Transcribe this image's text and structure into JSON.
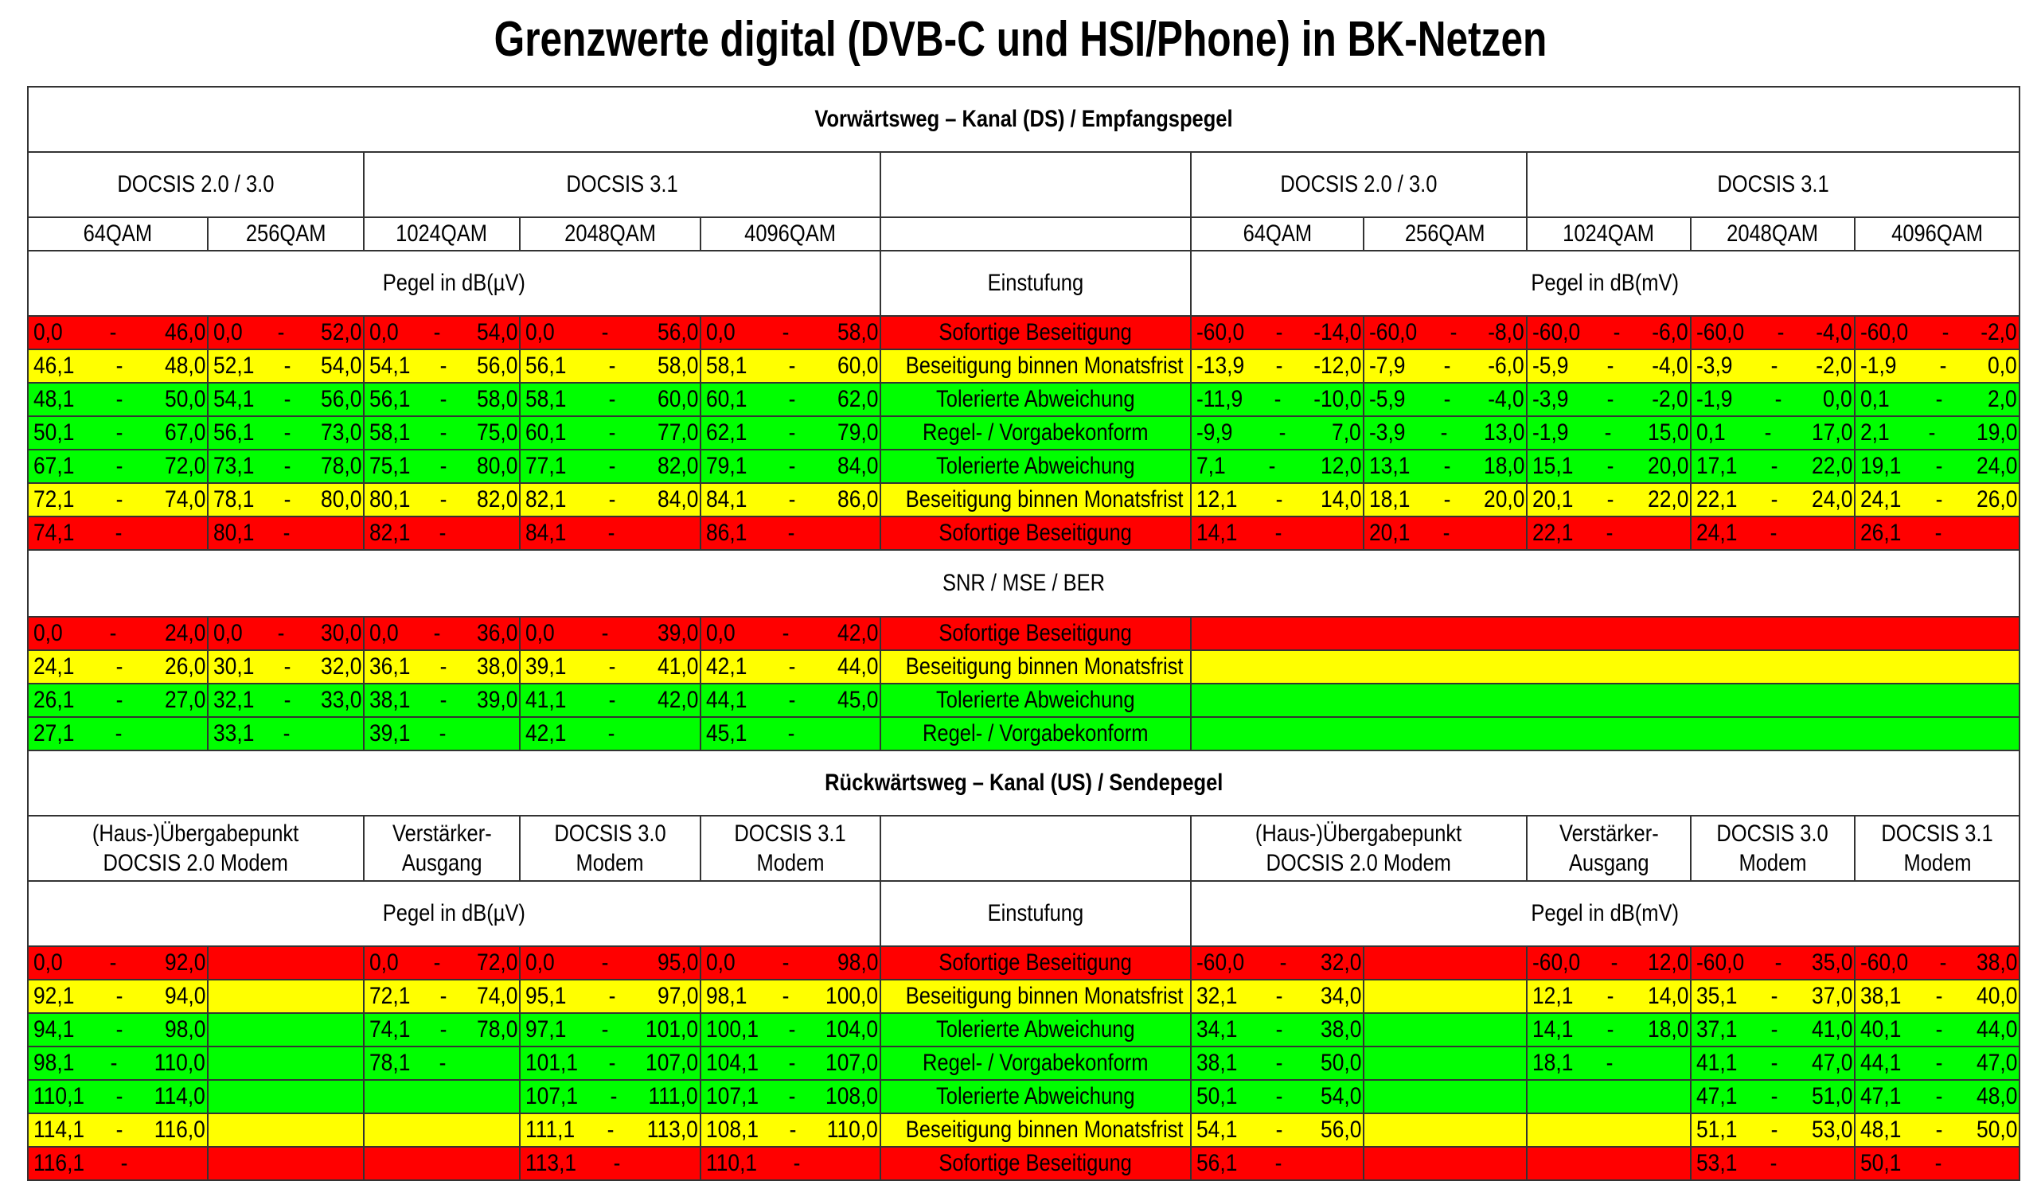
{
  "title": "Grenzwerte digital (DVB-C und HSI/Phone) in BK-Netzen",
  "colors": {
    "red": "#ff0000",
    "yellow": "#ffff00",
    "green": "#00ff00"
  },
  "downstream": {
    "heading": "Vorwärtsweg – Kanal (DS) / Empfangspegel",
    "groups": [
      "DOCSIS 2.0 / 3.0",
      "DOCSIS 3.1",
      "",
      "DOCSIS 2.0 / 3.0",
      "DOCSIS 3.1"
    ],
    "modulations": [
      "64QAM",
      "256QAM",
      "1024QAM",
      "2048QAM",
      "4096QAM",
      "",
      "64QAM",
      "256QAM",
      "1024QAM",
      "2048QAM",
      "4096QAM"
    ],
    "unit_left": "Pegel in dB(µV)",
    "classification": "Einstufung",
    "unit_right": "Pegel in dB(mV)",
    "rows": [
      {
        "color": "red",
        "label": "Sofortige Beseitigung",
        "left": [
          [
            "0,0",
            "46,0"
          ],
          [
            "0,0",
            "52,0"
          ],
          [
            "0,0",
            "54,0"
          ],
          [
            "0,0",
            "56,0"
          ],
          [
            "0,0",
            "58,0"
          ]
        ],
        "right": [
          [
            "-60,0",
            "-14,0"
          ],
          [
            "-60,0",
            "-8,0"
          ],
          [
            "-60,0",
            "-6,0"
          ],
          [
            "-60,0",
            "-4,0"
          ],
          [
            "-60,0",
            "-2,0"
          ]
        ]
      },
      {
        "color": "yellow",
        "label": "Beseitigung binnen Monatsfrist",
        "left": [
          [
            "46,1",
            "48,0"
          ],
          [
            "52,1",
            "54,0"
          ],
          [
            "54,1",
            "56,0"
          ],
          [
            "56,1",
            "58,0"
          ],
          [
            "58,1",
            "60,0"
          ]
        ],
        "right": [
          [
            "-13,9",
            "-12,0"
          ],
          [
            "-7,9",
            "-6,0"
          ],
          [
            "-5,9",
            "-4,0"
          ],
          [
            "-3,9",
            "-2,0"
          ],
          [
            "-1,9",
            "0,0"
          ]
        ]
      },
      {
        "color": "green",
        "label": "Tolerierte Abweichung",
        "left": [
          [
            "48,1",
            "50,0"
          ],
          [
            "54,1",
            "56,0"
          ],
          [
            "56,1",
            "58,0"
          ],
          [
            "58,1",
            "60,0"
          ],
          [
            "60,1",
            "62,0"
          ]
        ],
        "right": [
          [
            "-11,9",
            "-10,0"
          ],
          [
            "-5,9",
            "-4,0"
          ],
          [
            "-3,9",
            "-2,0"
          ],
          [
            "-1,9",
            "0,0"
          ],
          [
            "0,1",
            "2,0"
          ]
        ]
      },
      {
        "color": "green",
        "label": "Regel- / Vorgabekonform",
        "left": [
          [
            "50,1",
            "67,0"
          ],
          [
            "56,1",
            "73,0"
          ],
          [
            "58,1",
            "75,0"
          ],
          [
            "60,1",
            "77,0"
          ],
          [
            "62,1",
            "79,0"
          ]
        ],
        "right": [
          [
            "-9,9",
            "7,0"
          ],
          [
            "-3,9",
            "13,0"
          ],
          [
            "-1,9",
            "15,0"
          ],
          [
            "0,1",
            "17,0"
          ],
          [
            "2,1",
            "19,0"
          ]
        ]
      },
      {
        "color": "green",
        "label": "Tolerierte Abweichung",
        "left": [
          [
            "67,1",
            "72,0"
          ],
          [
            "73,1",
            "78,0"
          ],
          [
            "75,1",
            "80,0"
          ],
          [
            "77,1",
            "82,0"
          ],
          [
            "79,1",
            "84,0"
          ]
        ],
        "right": [
          [
            "7,1",
            "12,0"
          ],
          [
            "13,1",
            "18,0"
          ],
          [
            "15,1",
            "20,0"
          ],
          [
            "17,1",
            "22,0"
          ],
          [
            "19,1",
            "24,0"
          ]
        ]
      },
      {
        "color": "yellow",
        "label": "Beseitigung binnen Monatsfrist",
        "left": [
          [
            "72,1",
            "74,0"
          ],
          [
            "78,1",
            "80,0"
          ],
          [
            "80,1",
            "82,0"
          ],
          [
            "82,1",
            "84,0"
          ],
          [
            "84,1",
            "86,0"
          ]
        ],
        "right": [
          [
            "12,1",
            "14,0"
          ],
          [
            "18,1",
            "20,0"
          ],
          [
            "20,1",
            "22,0"
          ],
          [
            "22,1",
            "24,0"
          ],
          [
            "24,1",
            "26,0"
          ]
        ]
      },
      {
        "color": "red",
        "label": "Sofortige Beseitigung",
        "left": [
          [
            "74,1",
            ""
          ],
          [
            "80,1",
            ""
          ],
          [
            "82,1",
            ""
          ],
          [
            "84,1",
            ""
          ],
          [
            "86,1",
            ""
          ]
        ],
        "right": [
          [
            "14,1",
            ""
          ],
          [
            "20,1",
            ""
          ],
          [
            "22,1",
            ""
          ],
          [
            "24,1",
            ""
          ],
          [
            "26,1",
            ""
          ]
        ]
      }
    ]
  },
  "snr": {
    "heading": "SNR / MSE / BER",
    "rows": [
      {
        "color": "red",
        "label": "Sofortige Beseitigung",
        "left": [
          [
            "0,0",
            "24,0"
          ],
          [
            "0,0",
            "30,0"
          ],
          [
            "0,0",
            "36,0"
          ],
          [
            "0,0",
            "39,0"
          ],
          [
            "0,0",
            "42,0"
          ]
        ]
      },
      {
        "color": "yellow",
        "label": "Beseitigung binnen Monatsfrist",
        "left": [
          [
            "24,1",
            "26,0"
          ],
          [
            "30,1",
            "32,0"
          ],
          [
            "36,1",
            "38,0"
          ],
          [
            "39,1",
            "41,0"
          ],
          [
            "42,1",
            "44,0"
          ]
        ]
      },
      {
        "color": "green",
        "label": "Tolerierte Abweichung",
        "left": [
          [
            "26,1",
            "27,0"
          ],
          [
            "32,1",
            "33,0"
          ],
          [
            "38,1",
            "39,0"
          ],
          [
            "41,1",
            "42,0"
          ],
          [
            "44,1",
            "45,0"
          ]
        ]
      },
      {
        "color": "green",
        "label": "Regel- / Vorgabekonform",
        "left": [
          [
            "27,1",
            ""
          ],
          [
            "33,1",
            ""
          ],
          [
            "39,1",
            ""
          ],
          [
            "42,1",
            ""
          ],
          [
            "45,1",
            ""
          ]
        ]
      }
    ]
  },
  "upstream": {
    "heading": "Rückwärtsweg – Kanal (US) / Sendepegel",
    "columns": [
      [
        "(Haus-)Übergabepunkt",
        "DOCSIS 2.0 Modem"
      ],
      [
        "Verstärker-",
        "Ausgang"
      ],
      [
        "DOCSIS 3.0",
        "Modem"
      ],
      [
        "DOCSIS 3.1",
        "Modem"
      ],
      [
        "",
        ""
      ],
      [
        "(Haus-)Übergabepunkt",
        "DOCSIS 2.0 Modem"
      ],
      [
        "Verstärker-",
        "Ausgang"
      ],
      [
        "DOCSIS 3.0",
        "Modem"
      ],
      [
        "DOCSIS 3.1",
        "Modem"
      ]
    ],
    "unit_left": "Pegel in dB(µV)",
    "classification": "Einstufung",
    "unit_right": "Pegel in dB(mV)",
    "rows": [
      {
        "color": "red",
        "label": "Sofortige Beseitigung",
        "left": [
          [
            "0,0",
            "92,0"
          ],
          [
            "0,0",
            "72,0"
          ],
          [
            "0,0",
            "95,0"
          ],
          [
            "0,0",
            "98,0"
          ]
        ],
        "right": [
          [
            "-60,0",
            "32,0"
          ],
          [
            "-60,0",
            "12,0"
          ],
          [
            "-60,0",
            "35,0"
          ],
          [
            "-60,0",
            "38,0"
          ]
        ]
      },
      {
        "color": "yellow",
        "label": "Beseitigung binnen Monatsfrist",
        "left": [
          [
            "92,1",
            "94,0"
          ],
          [
            "72,1",
            "74,0"
          ],
          [
            "95,1",
            "97,0"
          ],
          [
            "98,1",
            "100,0"
          ]
        ],
        "right": [
          [
            "32,1",
            "34,0"
          ],
          [
            "12,1",
            "14,0"
          ],
          [
            "35,1",
            "37,0"
          ],
          [
            "38,1",
            "40,0"
          ]
        ]
      },
      {
        "color": "green",
        "label": "Tolerierte Abweichung",
        "left": [
          [
            "94,1",
            "98,0"
          ],
          [
            "74,1",
            "78,0"
          ],
          [
            "97,1",
            "101,0"
          ],
          [
            "100,1",
            "104,0"
          ]
        ],
        "right": [
          [
            "34,1",
            "38,0"
          ],
          [
            "14,1",
            "18,0"
          ],
          [
            "37,1",
            "41,0"
          ],
          [
            "40,1",
            "44,0"
          ]
        ]
      },
      {
        "color": "green",
        "label": "Regel- / Vorgabekonform",
        "left": [
          [
            "98,1",
            "110,0"
          ],
          [
            "78,1",
            ""
          ],
          [
            "101,1",
            "107,0"
          ],
          [
            "104,1",
            "107,0"
          ]
        ],
        "right": [
          [
            "38,1",
            "50,0"
          ],
          [
            "18,1",
            ""
          ],
          [
            "41,1",
            "47,0"
          ],
          [
            "44,1",
            "47,0"
          ]
        ]
      },
      {
        "color": "green",
        "label": "Tolerierte Abweichung",
        "left": [
          [
            "110,1",
            "114,0"
          ],
          [
            "",
            ""
          ],
          [
            "107,1",
            "111,0"
          ],
          [
            "107,1",
            "108,0"
          ]
        ],
        "right": [
          [
            "50,1",
            "54,0"
          ],
          [
            "",
            ""
          ],
          [
            "47,1",
            "51,0"
          ],
          [
            "47,1",
            "48,0"
          ]
        ]
      },
      {
        "color": "yellow",
        "label": "Beseitigung binnen Monatsfrist",
        "left": [
          [
            "114,1",
            "116,0"
          ],
          [
            "",
            ""
          ],
          [
            "111,1",
            "113,0"
          ],
          [
            "108,1",
            "110,0"
          ]
        ],
        "right": [
          [
            "54,1",
            "56,0"
          ],
          [
            "",
            ""
          ],
          [
            "51,1",
            "53,0"
          ],
          [
            "48,1",
            "50,0"
          ]
        ]
      },
      {
        "color": "red",
        "label": "Sofortige Beseitigung",
        "left": [
          [
            "116,1",
            ""
          ],
          [
            "",
            ""
          ],
          [
            "113,1",
            ""
          ],
          [
            "110,1",
            ""
          ]
        ],
        "right": [
          [
            "56,1",
            ""
          ],
          [
            "",
            ""
          ],
          [
            "53,1",
            ""
          ],
          [
            "50,1",
            ""
          ]
        ]
      }
    ]
  }
}
